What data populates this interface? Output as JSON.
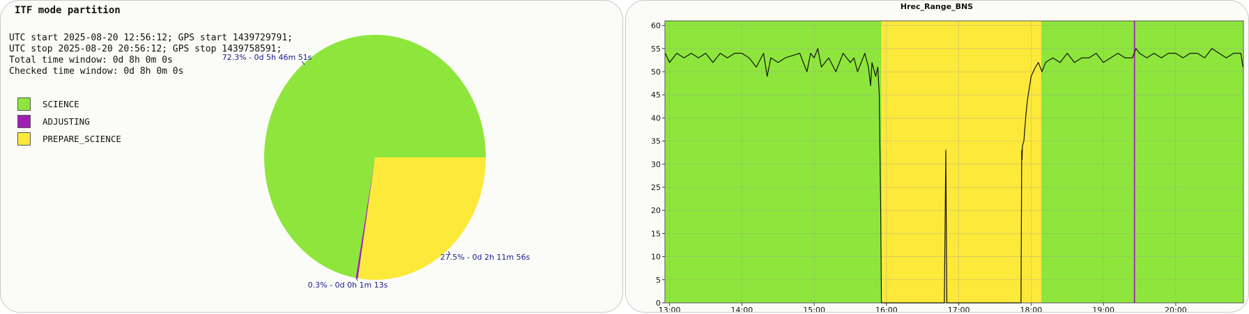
{
  "pie": {
    "title": "ITF mode partition",
    "info": [
      "UTC start 2025-08-20 12:56:12; GPS start 1439729791;",
      "UTC stop 2025-08-20 20:56:12; GPS stop 1439758591;",
      "Total time window: 0d 8h 0m 0s",
      "Checked time window: 0d 8h 0m 0s"
    ]
  },
  "colors": {
    "science": "#8ee63c",
    "adjusting": "#a020b4",
    "prepare_science": "#fde93a",
    "label": "#1a1a8c"
  },
  "chart_data": [
    {
      "type": "pie",
      "title": "ITF mode partition",
      "slices": [
        {
          "name": "SCIENCE",
          "percent": 72.3,
          "label": "72.3% - 0d 5h 46m 51s",
          "color": "#8ee63c"
        },
        {
          "name": "ADJUSTING",
          "percent": 0.3,
          "label": "0.3% - 0d 0h 1m 13s",
          "color": "#a020b4"
        },
        {
          "name": "PREPARE_SCIENCE",
          "percent": 27.5,
          "label": "27.5% - 0d 2h 11m 56s",
          "color": "#fde93a"
        }
      ],
      "legend_position": "top-left"
    },
    {
      "type": "line",
      "title": "Hrec_Range_BNS",
      "xlabel": "",
      "ylabel": "",
      "xlim": [
        12.936,
        20.936
      ],
      "ylim": [
        0,
        61
      ],
      "x_ticks": [
        "13:00",
        "14:00",
        "15:00",
        "16:00",
        "17:00",
        "18:00",
        "19:00",
        "20:00"
      ],
      "x_tick_values": [
        13,
        14,
        15,
        16,
        17,
        18,
        19,
        20
      ],
      "y_ticks": [
        0,
        5,
        10,
        15,
        20,
        25,
        30,
        35,
        40,
        45,
        50,
        55,
        60
      ],
      "grid": true,
      "background_bands": [
        {
          "state": "SCIENCE",
          "x0": 12.936,
          "x1": 15.93
        },
        {
          "state": "PREPARE_SCIENCE",
          "x0": 15.93,
          "x1": 18.14
        },
        {
          "state": "SCIENCE",
          "x0": 18.14,
          "x1": 19.42
        },
        {
          "state": "ADJUSTING",
          "x0": 19.42,
          "x1": 19.44
        },
        {
          "state": "SCIENCE",
          "x0": 19.44,
          "x1": 20.936
        }
      ],
      "series": [
        {
          "x": [
            12.94,
            13.0,
            13.1,
            13.2,
            13.3,
            13.4,
            13.5,
            13.6,
            13.7,
            13.8,
            13.9,
            14.0,
            14.1,
            14.2,
            14.3,
            14.35,
            14.4,
            14.5,
            14.6,
            14.8,
            14.9,
            14.95,
            15.0,
            15.05,
            15.1,
            15.2,
            15.3,
            15.4,
            15.5,
            15.55,
            15.6,
            15.7,
            15.75,
            15.78,
            15.8,
            15.85,
            15.88,
            15.9,
            15.92,
            15.93,
            15.94,
            16.2,
            16.4,
            16.6,
            16.8,
            16.82,
            16.83,
            16.835,
            16.84,
            16.85,
            16.86,
            16.88,
            17.0,
            17.4,
            17.8,
            17.86,
            17.87,
            17.875,
            17.88,
            17.9,
            17.93,
            17.95,
            17.98,
            18.0,
            18.03,
            18.06,
            18.1,
            18.15,
            18.2,
            18.3,
            18.4,
            18.5,
            18.6,
            18.7,
            18.8,
            18.9,
            19.0,
            19.1,
            19.2,
            19.3,
            19.4,
            19.45,
            19.5,
            19.6,
            19.7,
            19.8,
            19.9,
            20.0,
            20.1,
            20.2,
            20.3,
            20.4,
            20.5,
            20.6,
            20.7,
            20.8,
            20.9,
            20.93
          ],
          "y": [
            54,
            52,
            54,
            53,
            54,
            53,
            54,
            52,
            54,
            53,
            54,
            54,
            53,
            51,
            54,
            49,
            53,
            52,
            53,
            54,
            50,
            54,
            53,
            55,
            51,
            53,
            50,
            54,
            52,
            53,
            50,
            54,
            51,
            47,
            52,
            49,
            51,
            45,
            20,
            0,
            0,
            0,
            0,
            0,
            0,
            33,
            10,
            0,
            0,
            0,
            0,
            0,
            0,
            0,
            0,
            0,
            33,
            31,
            34,
            35,
            41,
            44,
            47,
            49,
            50,
            51,
            52,
            50,
            52,
            53,
            52,
            54,
            52,
            53,
            53,
            54,
            52,
            53,
            54,
            53,
            53,
            55,
            54,
            53,
            54,
            53,
            54,
            54,
            53,
            54,
            54,
            53,
            55,
            54,
            53,
            54,
            54,
            51
          ]
        }
      ]
    }
  ]
}
